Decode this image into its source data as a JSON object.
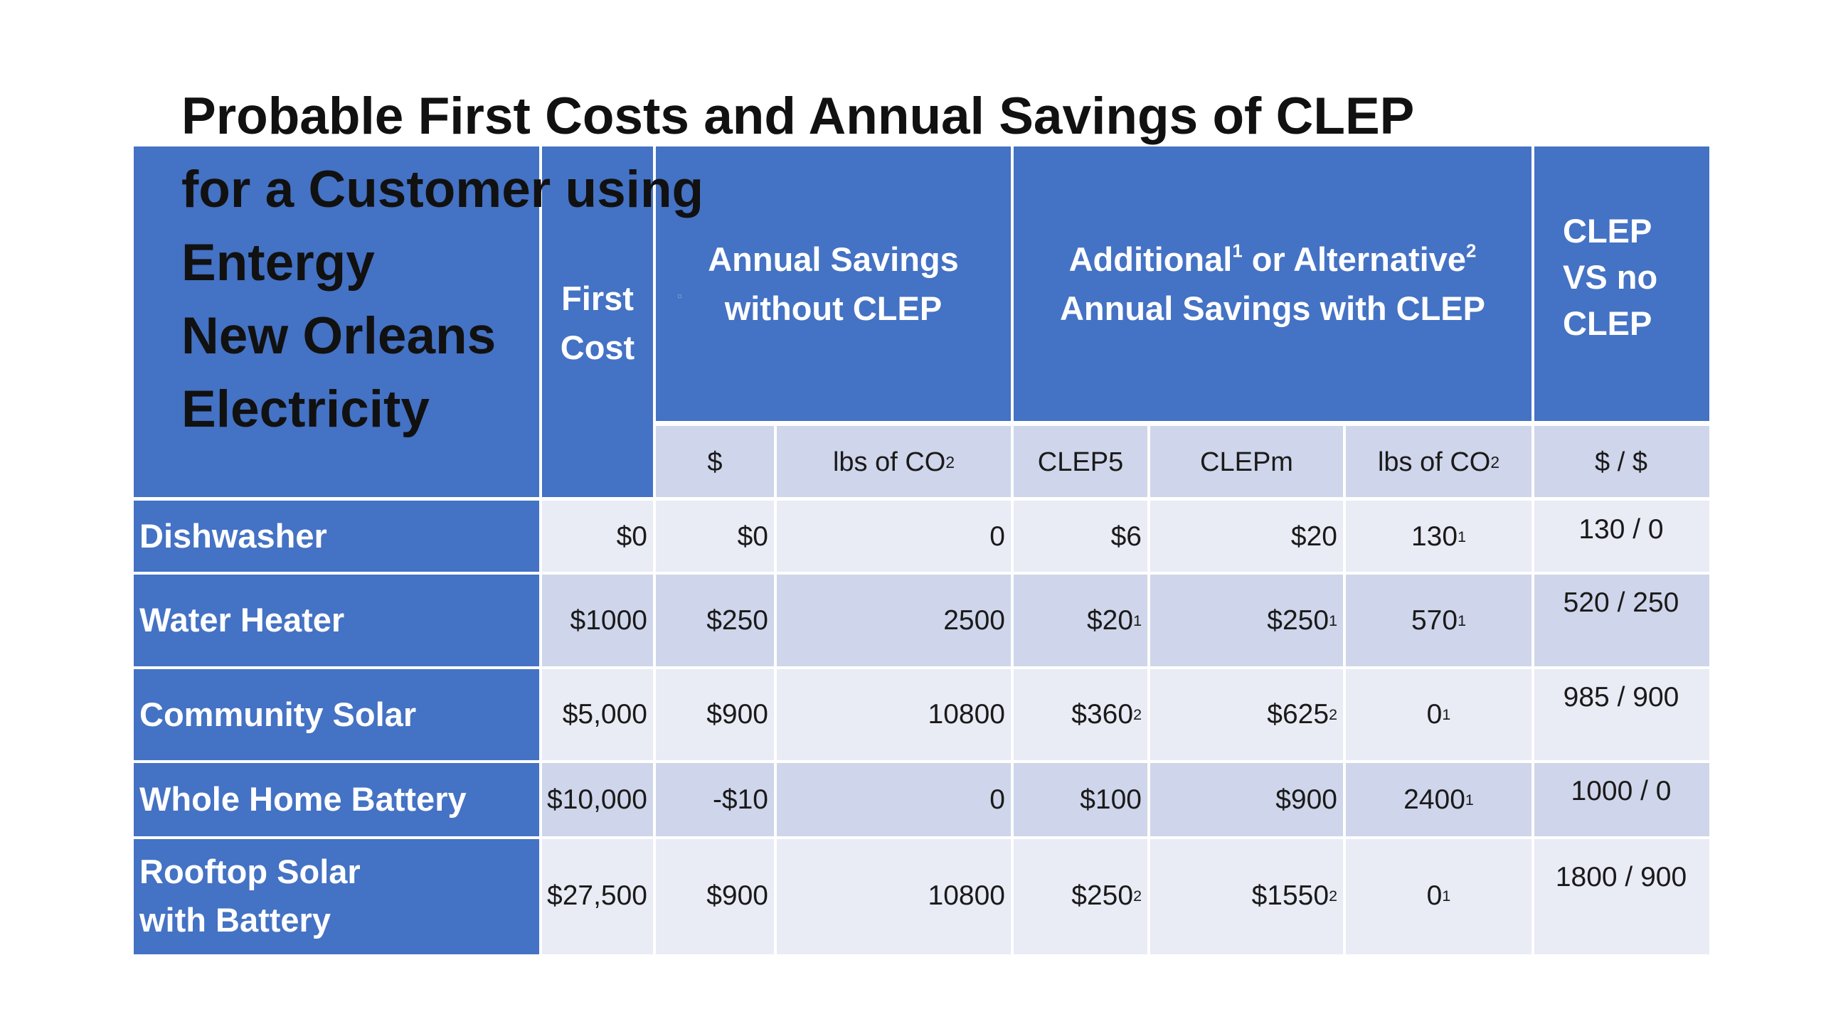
{
  "title": {
    "lines": [
      "Probable First Costs and Annual Savings of CLEP",
      "for a Customer using",
      "Entergy",
      "New Orleans",
      "Electricity"
    ]
  },
  "header": {
    "first_cost": [
      "First",
      "Cost"
    ],
    "annual_savings_without": [
      "Annual Savings",
      "without CLEP"
    ],
    "with_clep": {
      "word1": "Additional",
      "note1": "1",
      "connector": " or Alternative",
      "note2": "2",
      "line2": "Annual Savings with CLEP"
    },
    "clep_vs": [
      "CLEP",
      "VS no",
      "CLEP"
    ],
    "marker": "▫"
  },
  "subheader": {
    "dollar": "$",
    "lbs_prefix": "lbs of CO",
    "lbs_sub": "2",
    "clep5": "CLEP5",
    "clepm": "CLEPm",
    "lbs2_prefix": "lbs of CO",
    "lbs2_sub": "2",
    "ratio": "$ / $"
  },
  "rows": [
    {
      "label": "Dishwasher",
      "first_cost": "$0",
      "save_dollar": "$0",
      "save_lbs": "0",
      "clep5": "$6",
      "clep5_note": "",
      "clepm": "$20",
      "clepm_note": "",
      "lbs_co2": "130",
      "lbs_co2_note": "1",
      "ratio": "130 / 0"
    },
    {
      "label": "Water Heater",
      "first_cost": "$1000",
      "save_dollar": "$250",
      "save_lbs": "2500",
      "clep5": "$20",
      "clep5_note": "1",
      "clepm": "$250",
      "clepm_note": "1",
      "lbs_co2": "570",
      "lbs_co2_note": "1",
      "ratio": "520 / 250"
    },
    {
      "label": "Community Solar",
      "first_cost": "$5,000",
      "save_dollar": "$900",
      "save_lbs": "10800",
      "clep5": "$360",
      "clep5_note": "2",
      "clepm": "$625",
      "clepm_note": "2",
      "lbs_co2": "0",
      "lbs_co2_note": "1",
      "ratio": "985 / 900"
    },
    {
      "label": "Whole Home Battery",
      "first_cost": "$10,000",
      "save_dollar": "-$10",
      "save_lbs": "0",
      "clep5": "$100",
      "clep5_note": "",
      "clepm": "$900",
      "clepm_note": "",
      "lbs_co2": "2400",
      "lbs_co2_note": "1",
      "ratio": "1000 / 0"
    },
    {
      "label": "Rooftop Solar with Battery",
      "first_cost": "$27,500",
      "save_dollar": "$900",
      "save_lbs": "10800",
      "clep5": "$250",
      "clep5_note": "2",
      "clepm": "$1550",
      "clepm_note": "2",
      "lbs_co2": "0",
      "lbs_co2_note": "1",
      "ratio": "1800 / 900"
    }
  ],
  "colors": {
    "header": "#4472C4",
    "band_light": "#E9EBF5",
    "band_dark": "#CFD5EA"
  }
}
